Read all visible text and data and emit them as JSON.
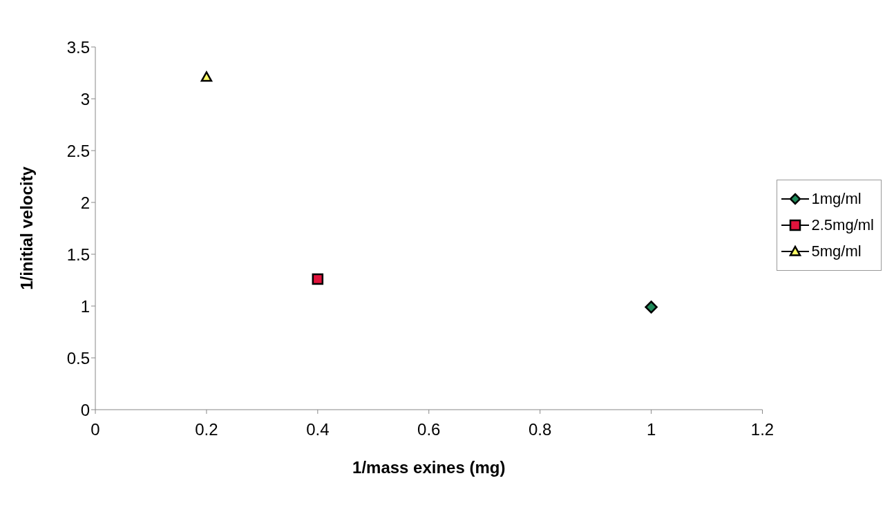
{
  "chart_data": {
    "type": "line",
    "xlabel": "1/mass exines (mg)",
    "ylabel": "1/initial velocity",
    "xlim": [
      0,
      1.2
    ],
    "xticks": [
      0,
      0.2,
      0.4,
      0.6,
      0.8,
      1,
      1.2
    ],
    "ylim": [
      0,
      3.5
    ],
    "yticks": [
      0,
      0.5,
      1,
      1.5,
      2,
      2.5,
      3,
      3.5
    ],
    "grid": false,
    "legend": "right",
    "series": [
      {
        "name": "1mg/ml",
        "color": "#1f8a5a",
        "marker": "diamond",
        "x": [
          1
        ],
        "values": [
          0.99
        ]
      },
      {
        "name": "2.5mg/ml",
        "color": "#e0143c",
        "marker": "square",
        "x": [
          0.4
        ],
        "values": [
          1.26
        ]
      },
      {
        "name": "5mg/ml",
        "color": "#ffff66",
        "marker": "triangle",
        "x": [
          0.2
        ],
        "values": [
          3.21
        ]
      }
    ]
  }
}
